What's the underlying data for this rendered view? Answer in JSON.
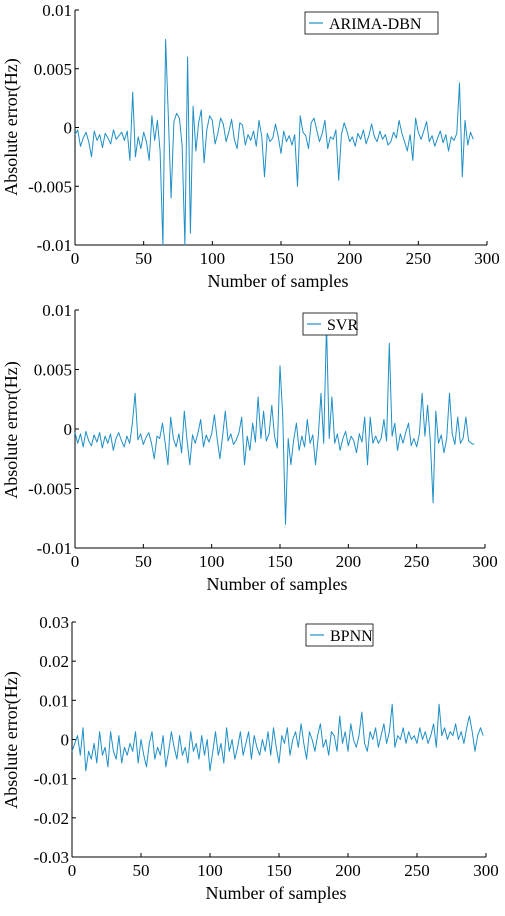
{
  "chart_data": [
    {
      "type": "line",
      "title": "",
      "xlabel": "Number of samples",
      "ylabel": "Absolute error(Hz)",
      "xlim": [
        0,
        300
      ],
      "ylim": [
        -0.01,
        0.01
      ],
      "xticks": [
        0,
        50,
        100,
        150,
        200,
        250,
        300
      ],
      "yticks": [
        -0.01,
        -0.005,
        0,
        0.005,
        0.01
      ],
      "ytick_labels": [
        "-0.01",
        "-0.005",
        "0",
        "0.005",
        "0.01"
      ],
      "legend": "top-right",
      "grid": false,
      "color": "#1f8fc6",
      "series": [
        {
          "name": "ARIMA-DBN",
          "x_start": 0,
          "x_step": 2,
          "values": [
            -0.0006,
            -0.0002,
            -0.0016,
            -0.0009,
            -0.0004,
            -0.0012,
            -0.0025,
            -0.0003,
            -0.0011,
            -0.0006,
            -0.0017,
            -0.0005,
            -0.0009,
            -0.0014,
            -0.0002,
            -0.001,
            -0.0007,
            -0.0004,
            -0.0011,
            -0.0003,
            -0.0028,
            0.003,
            -0.0025,
            -0.0008,
            -0.0018,
            -0.0004,
            -0.0012,
            -0.0028,
            0.001,
            -0.0011,
            0.0006,
            -0.002,
            -0.01,
            0.0075,
            0.0008,
            -0.006,
            0.0005,
            0.0012,
            0.0008,
            -0.0015,
            -0.01,
            0.006,
            -0.009,
            0.0018,
            -0.002,
            0.0004,
            0.0015,
            -0.003,
            -0.0002,
            0.001,
            0.0006,
            -0.0014,
            -0.0005,
            0.0008,
            0.0003,
            -0.0012,
            -0.0004,
            0.0007,
            -0.001,
            -0.0018,
            0.0004,
            0.0002,
            -0.0015,
            -0.0006,
            -0.0011,
            -0.0003,
            -0.0016,
            0.0006,
            -0.0008,
            -0.0042,
            -0.0005,
            -0.0012,
            -0.0009,
            0.0003,
            -0.0008,
            -0.0022,
            -0.0003,
            -0.0012,
            -0.0007,
            -0.0015,
            -0.0006,
            -0.005,
            0.001,
            -0.0004,
            -0.0007,
            -0.0018,
            0.0004,
            0.0008,
            -0.0002,
            -0.0012,
            -0.0005,
            0.0006,
            -0.0018,
            -0.0008,
            -0.001,
            -0.0002,
            -0.0045,
            -0.0006,
            0.0004,
            -0.0003,
            -0.0012,
            -0.0008,
            -0.0016,
            -0.0005,
            -0.001,
            -0.0002,
            -0.0014,
            -0.0007,
            0.0003,
            -0.0008,
            -0.0012,
            -0.0003,
            -0.001,
            -0.0006,
            -0.0015,
            -0.0012,
            -0.0004,
            -0.0009,
            0.0006,
            -0.0005,
            -0.0012,
            -0.002,
            -0.0006,
            -0.0028,
            0.0008,
            -0.0004,
            -0.001,
            -0.0003,
            0.0005,
            -0.0012,
            -0.0007,
            -0.0016,
            -0.0009,
            -0.0003,
            -0.0013,
            -0.0006,
            -0.002,
            -0.0008,
            -0.0011,
            -0.0005,
            0.0038,
            -0.0042,
            0.0006,
            -0.0015,
            -0.0004,
            -0.001
          ]
        }
      ]
    },
    {
      "type": "line",
      "title": "",
      "xlabel": "Number of samples",
      "ylabel": "Absolute error(Hz)",
      "xlim": [
        0,
        300
      ],
      "ylim": [
        -0.01,
        0.01
      ],
      "xticks": [
        0,
        50,
        100,
        150,
        200,
        250,
        300
      ],
      "yticks": [
        -0.01,
        -0.005,
        0,
        0.005,
        0.01
      ],
      "ytick_labels": [
        "-0.01",
        "-0.005",
        "0",
        "0.005",
        "0.01"
      ],
      "legend": "top-right",
      "grid": false,
      "color": "#1f8fc6",
      "series": [
        {
          "name": "SVR",
          "x_start": 0,
          "x_step": 2,
          "values": [
            -0.0003,
            -0.0012,
            -0.0004,
            -0.0015,
            -0.0002,
            -0.001,
            -0.0014,
            -0.0005,
            -0.0011,
            -0.0003,
            -0.0016,
            -0.0006,
            -0.0012,
            -0.0004,
            -0.0018,
            -0.0008,
            -0.0003,
            -0.001,
            -0.0015,
            -0.0006,
            -0.0012,
            0.0005,
            0.003,
            -0.0009,
            -0.0004,
            -0.0013,
            -0.0007,
            -0.0003,
            -0.0012,
            -0.0025,
            -0.0006,
            -0.0008,
            0.0005,
            -0.0012,
            -0.003,
            0.001,
            -0.0008,
            -0.0015,
            -0.0004,
            -0.002,
            0.0015,
            -0.001,
            -0.003,
            -0.0005,
            -0.0012,
            -0.0003,
            0.0008,
            -0.0015,
            -0.0005,
            -0.0011,
            -0.0004,
            0.0012,
            -0.0008,
            -0.0025,
            -0.0006,
            0.0015,
            -0.001,
            -0.0004,
            -0.0013,
            -0.0009,
            -0.0003,
            0.001,
            -0.003,
            -0.0006,
            -0.0018,
            0.0005,
            -0.0011,
            0.0027,
            -0.0008,
            0.0015,
            -0.001,
            -0.0004,
            0.002,
            -0.0006,
            -0.0016,
            0.0053,
            0.0012,
            -0.008,
            -0.0008,
            -0.003,
            -0.0009,
            0.0005,
            -0.0018,
            -0.0006,
            -0.0015,
            0.0008,
            -0.0012,
            -0.0005,
            -0.003,
            -0.0006,
            0.003,
            -0.0012,
            0.0088,
            -0.0008,
            0.0027,
            -0.0012,
            -0.0004,
            -0.0018,
            -0.0008,
            -0.0002,
            -0.0014,
            -0.0006,
            -0.001,
            -0.002,
            -0.0004,
            -0.0011,
            0.001,
            -0.003,
            0.001,
            -0.0012,
            -0.0006,
            -0.0012,
            -0.0008,
            0.0008,
            -0.001,
            0.0072,
            -0.0006,
            0.0005,
            -0.0018,
            -0.0004,
            -0.0012,
            -0.0003,
            0.0005,
            -0.0014,
            -0.0008,
            -0.0015,
            -0.0004,
            0.003,
            -0.0006,
            0.002,
            -0.001,
            -0.0062,
            0.0015,
            -0.0012,
            -0.0005,
            -0.002,
            -0.0008,
            0.003,
            -0.0004,
            -0.0013,
            0.001,
            -0.0012,
            -0.0008,
            0.001,
            -0.001,
            -0.0012,
            -0.0013
          ]
        }
      ]
    },
    {
      "type": "line",
      "title": "",
      "xlabel": "Number of samples",
      "ylabel": "Absolute error(Hz)",
      "xlim": [
        0,
        300
      ],
      "ylim": [
        -0.03,
        0.03
      ],
      "xticks": [
        0,
        50,
        100,
        150,
        200,
        250,
        300
      ],
      "yticks": [
        -0.03,
        -0.02,
        -0.01,
        0,
        0.01,
        0.02,
        0.03
      ],
      "ytick_labels": [
        "-0.03",
        "-0.02",
        "-0.01",
        "0",
        "0.01",
        "0.02",
        "0.03"
      ],
      "legend": "top-right",
      "grid": false,
      "color": "#1f8fc6",
      "series": [
        {
          "name": "BPNN",
          "x_start": 0,
          "x_step": 2,
          "values": [
            -0.003,
            -0.001,
            0.001,
            -0.004,
            0.003,
            -0.008,
            -0.003,
            -0.005,
            -0.001,
            -0.006,
            0.002,
            -0.004,
            -0.002,
            -0.007,
            0.002,
            -0.003,
            -0.005,
            0.001,
            -0.006,
            -0.002,
            -0.004,
            -0.001,
            -0.003,
            0.002,
            -0.006,
            0.0,
            -0.004,
            -0.007,
            -0.001,
            0.002,
            -0.005,
            -0.002,
            -0.004,
            0.001,
            -0.007,
            -0.003,
            0.002,
            -0.002,
            -0.005,
            0.001,
            -0.004,
            -0.002,
            -0.006,
            0.002,
            -0.003,
            -0.001,
            -0.005,
            0.001,
            -0.004,
            0.0,
            -0.008,
            -0.003,
            0.002,
            -0.004,
            -0.001,
            -0.006,
            0.003,
            -0.003,
            0.0,
            -0.005,
            -0.002,
            0.002,
            -0.004,
            -0.001,
            0.002,
            -0.005,
            0.001,
            -0.002,
            -0.004,
            0.0,
            -0.003,
            0.002,
            -0.004,
            0.003,
            -0.002,
            -0.006,
            0.001,
            -0.001,
            0.003,
            -0.004,
            0.0,
            0.002,
            -0.002,
            0.004,
            -0.001,
            -0.005,
            0.002,
            0.0,
            -0.003,
            0.001,
            0.004,
            -0.002,
            0.0,
            -0.004,
            0.002,
            0.001,
            -0.003,
            0.006,
            -0.001,
            0.002,
            -0.003,
            0.004,
            0.0,
            -0.002,
            0.001,
            0.007,
            -0.001,
            -0.003,
            0.002,
            0.0,
            0.003,
            -0.002,
            0.001,
            0.004,
            -0.001,
            0.002,
            0.009,
            -0.002,
            0.001,
            0.0,
            0.003,
            -0.001,
            0.002,
            0.0,
            0.001,
            -0.001,
            0.003,
            0.0,
            0.002,
            -0.001,
            0.001,
            0.004,
            -0.002,
            0.009,
            0.001,
            0.003,
            0.0,
            0.002,
            0.001,
            0.004,
            0.0,
            0.002,
            -0.001,
            0.003,
            0.006,
            0.002,
            -0.003,
            0.001,
            0.003,
            0.001
          ]
        }
      ]
    }
  ]
}
